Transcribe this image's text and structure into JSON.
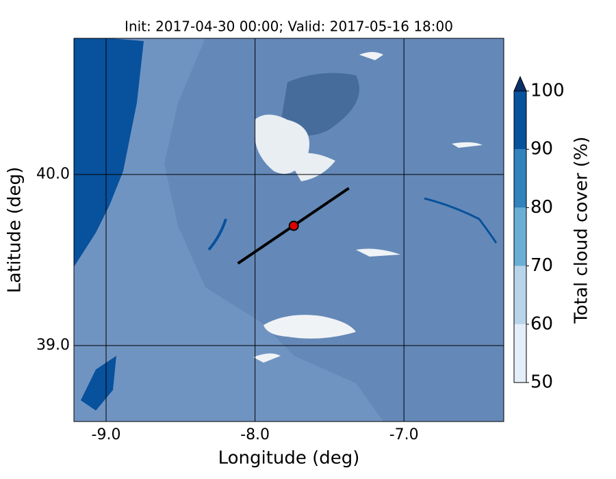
{
  "chart_data": {
    "type": "map",
    "title": "Init: 2017-04-30 00:00; Valid: 2017-05-16 18:00",
    "x_label": "Longitude (deg)",
    "y_label": "Latitude (deg)",
    "xlim": [
      -9.216,
      -6.33
    ],
    "ylim": [
      38.556,
      40.796
    ],
    "xticks": [
      {
        "value": -9.0,
        "label": "-9.0"
      },
      {
        "value": -8.0,
        "label": "-8.0"
      },
      {
        "value": -7.0,
        "label": "-7.0"
      }
    ],
    "yticks": [
      {
        "value": 39.0,
        "label": "39.0"
      },
      {
        "value": 40.0,
        "label": "40.0"
      }
    ],
    "grid": true,
    "track": {
      "x": [
        -8.115,
        -7.37
      ],
      "y": [
        39.48,
        39.92
      ],
      "color": "#000000"
    },
    "point": {
      "x": -7.74,
      "y": 39.7,
      "color": "#e00000"
    },
    "colorbar": {
      "label": "Total cloud cover (%)",
      "ticks": [
        50,
        60,
        70,
        80,
        90,
        100
      ],
      "colors": [
        "#e3eef8",
        "#b8d4ea",
        "#6aaed6",
        "#3182bd",
        "#08519c"
      ],
      "extend": "max",
      "extend_color": "#08306b"
    }
  }
}
